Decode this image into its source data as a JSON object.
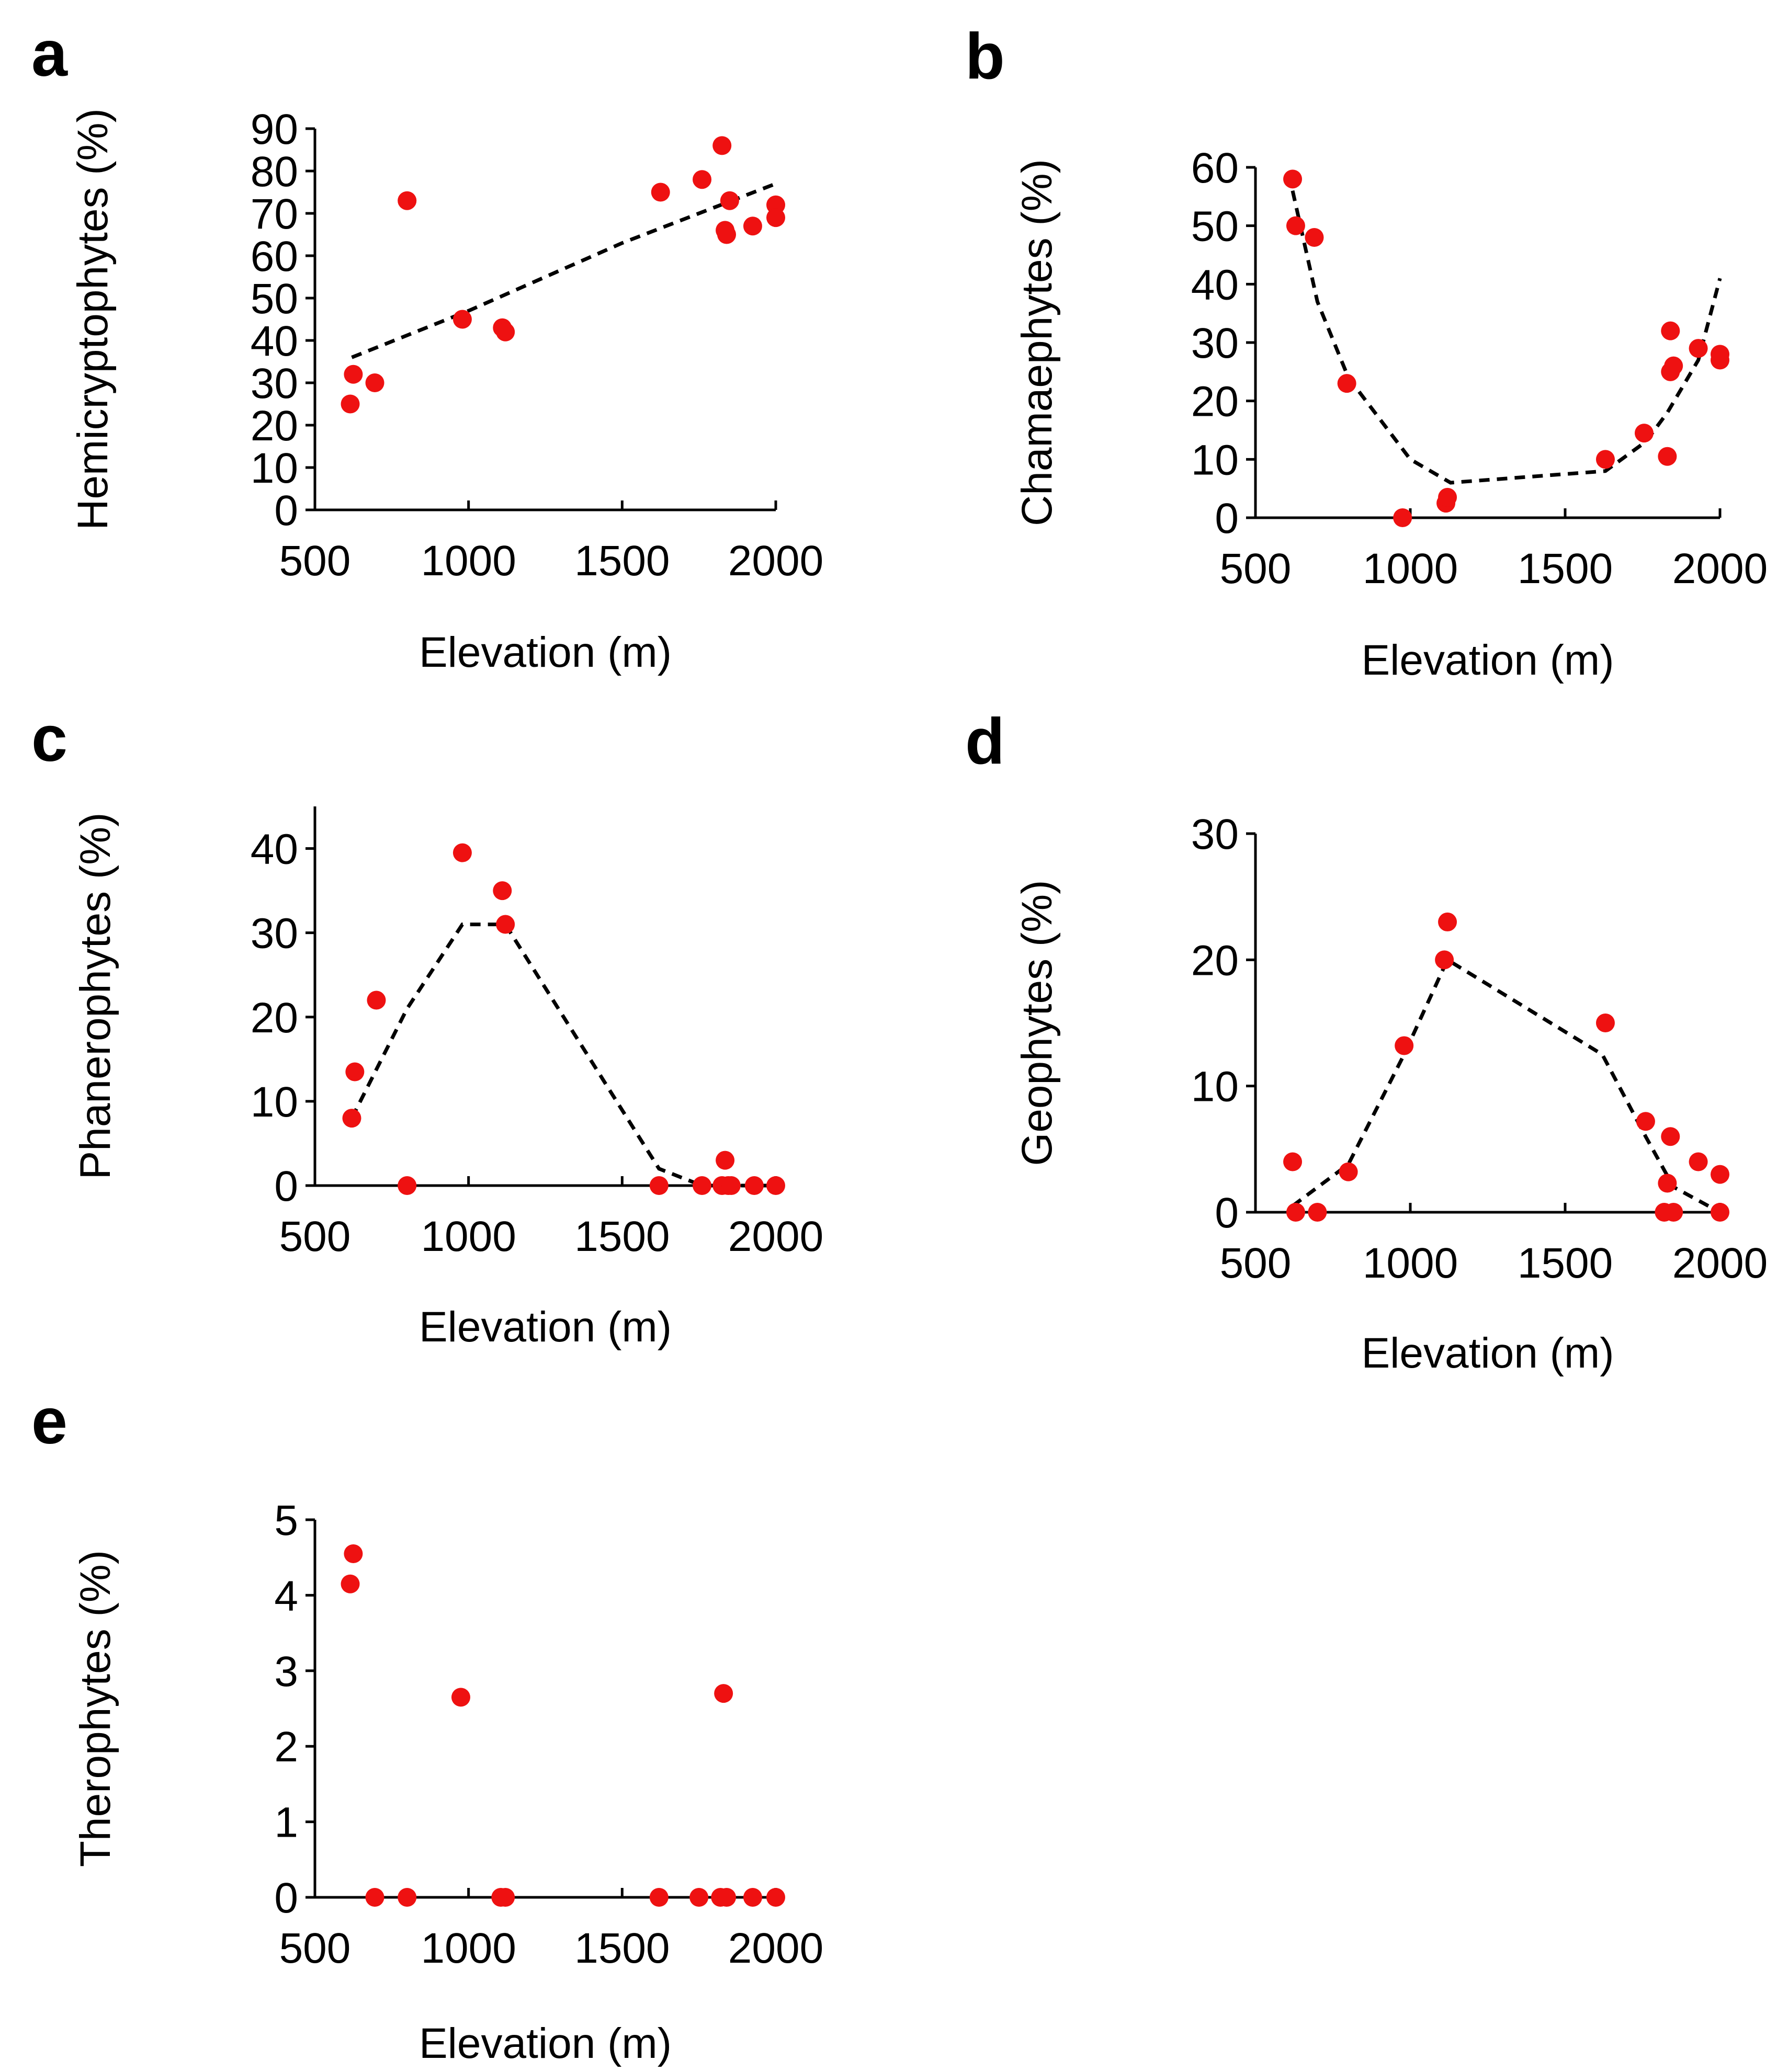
{
  "chart_data": [
    {
      "panel": "a",
      "type": "scatter",
      "xlabel": "Elevation (m)",
      "ylabel": "Hemicryptophytes (%)",
      "xlim": [
        500,
        2000
      ],
      "ylim": [
        0,
        90
      ],
      "xticks": [
        500,
        1000,
        1500,
        2000
      ],
      "yticks": [
        0,
        10,
        20,
        30,
        40,
        50,
        60,
        70,
        80,
        90
      ],
      "points": [
        [
          615,
          25
        ],
        [
          625,
          32
        ],
        [
          695,
          30
        ],
        [
          800,
          73
        ],
        [
          980,
          45
        ],
        [
          1110,
          43
        ],
        [
          1120,
          42
        ],
        [
          1625,
          75
        ],
        [
          1760,
          78
        ],
        [
          1825,
          86
        ],
        [
          1835,
          66
        ],
        [
          1840,
          65
        ],
        [
          1850,
          73
        ],
        [
          1925,
          67
        ],
        [
          2000,
          72
        ],
        [
          2000,
          69
        ]
      ],
      "trend": [
        [
          620,
          36
        ],
        [
          1000,
          47
        ],
        [
          1500,
          63
        ],
        [
          2000,
          77
        ]
      ]
    },
    {
      "panel": "b",
      "type": "scatter",
      "xlabel": "Elevation (m)",
      "ylabel": "Chamaephytes (%)",
      "xlim": [
        500,
        2000
      ],
      "ylim": [
        0,
        60
      ],
      "xticks": [
        500,
        1000,
        1500,
        2000
      ],
      "yticks": [
        0,
        10,
        20,
        30,
        40,
        50,
        60
      ],
      "points": [
        [
          620,
          58
        ],
        [
          630,
          50
        ],
        [
          690,
          48
        ],
        [
          795,
          23
        ],
        [
          975,
          0
        ],
        [
          1115,
          2.5
        ],
        [
          1120,
          3.5
        ],
        [
          1630,
          10
        ],
        [
          1755,
          14.5
        ],
        [
          1830,
          10.5
        ],
        [
          1840,
          32
        ],
        [
          1840,
          25
        ],
        [
          1850,
          26
        ],
        [
          1930,
          29
        ],
        [
          2000,
          28
        ],
        [
          2000,
          27
        ]
      ],
      "trend": [
        [
          620,
          56
        ],
        [
          700,
          37
        ],
        [
          800,
          24
        ],
        [
          1000,
          10
        ],
        [
          1130,
          6
        ],
        [
          1630,
          8
        ],
        [
          1760,
          13
        ],
        [
          1830,
          18
        ],
        [
          1930,
          27
        ],
        [
          2000,
          41
        ]
      ]
    },
    {
      "panel": "c",
      "type": "scatter",
      "xlabel": "Elevation (m)",
      "ylabel": "Phanerophytes (%)",
      "xlim": [
        500,
        2000
      ],
      "ylim": [
        0,
        45
      ],
      "xticks": [
        500,
        1000,
        1500,
        2000
      ],
      "yticks": [
        0,
        10,
        20,
        30,
        40
      ],
      "points": [
        [
          620,
          8
        ],
        [
          630,
          13.5
        ],
        [
          700,
          22
        ],
        [
          800,
          0
        ],
        [
          980,
          39.5
        ],
        [
          1110,
          35
        ],
        [
          1120,
          31
        ],
        [
          1620,
          0
        ],
        [
          1760,
          0
        ],
        [
          1825,
          0
        ],
        [
          1835,
          3
        ],
        [
          1845,
          0
        ],
        [
          1855,
          0
        ],
        [
          1930,
          0
        ],
        [
          2000,
          0
        ]
      ],
      "trend": [
        [
          620,
          8
        ],
        [
          800,
          21
        ],
        [
          980,
          31
        ],
        [
          1120,
          31
        ],
        [
          1620,
          2
        ],
        [
          1760,
          0
        ],
        [
          2000,
          0
        ]
      ]
    },
    {
      "panel": "d",
      "type": "scatter",
      "xlabel": "Elevation (m)",
      "ylabel": "Geophytes (%)",
      "xlim": [
        500,
        2000
      ],
      "ylim": [
        0,
        30
      ],
      "xticks": [
        500,
        1000,
        1500,
        2000
      ],
      "yticks": [
        0,
        10,
        20,
        30
      ],
      "points": [
        [
          620,
          4
        ],
        [
          630,
          0
        ],
        [
          700,
          0
        ],
        [
          800,
          3.2
        ],
        [
          980,
          13.2
        ],
        [
          1110,
          20
        ],
        [
          1120,
          23
        ],
        [
          1630,
          15
        ],
        [
          1760,
          7.2
        ],
        [
          1820,
          0
        ],
        [
          1830,
          2.3
        ],
        [
          1840,
          6
        ],
        [
          1850,
          0
        ],
        [
          1930,
          4
        ],
        [
          2000,
          3
        ],
        [
          2000,
          0
        ]
      ],
      "trend": [
        [
          620,
          0.5
        ],
        [
          800,
          3.8
        ],
        [
          980,
          12.5
        ],
        [
          1120,
          20
        ],
        [
          1620,
          12.5
        ],
        [
          1760,
          6
        ],
        [
          1850,
          2
        ],
        [
          2000,
          0
        ]
      ]
    },
    {
      "panel": "e",
      "type": "scatter",
      "xlabel": "Elevation (m)",
      "ylabel": "Therophytes (%)",
      "xlim": [
        500,
        2000
      ],
      "ylim": [
        0,
        5
      ],
      "xticks": [
        500,
        1000,
        1500,
        2000
      ],
      "yticks": [
        0,
        1,
        2,
        3,
        4,
        5
      ],
      "points": [
        [
          615,
          4.15
        ],
        [
          625,
          4.55
        ],
        [
          695,
          0
        ],
        [
          800,
          0
        ],
        [
          975,
          2.65
        ],
        [
          1105,
          0
        ],
        [
          1120,
          0
        ],
        [
          1620,
          0
        ],
        [
          1750,
          0
        ],
        [
          1820,
          0
        ],
        [
          1830,
          2.7
        ],
        [
          1840,
          0
        ],
        [
          1925,
          0
        ],
        [
          2000,
          0
        ]
      ],
      "trend": []
    }
  ]
}
